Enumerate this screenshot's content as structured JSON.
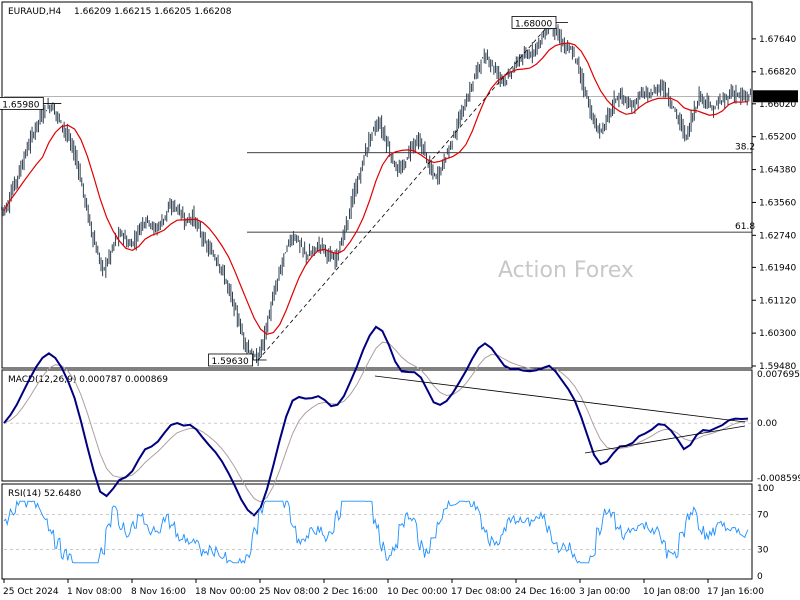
{
  "header": {
    "symbol": "EURAUD,H4",
    "ohlc": "1.66209 1.66215 1.66205 1.66208"
  },
  "watermark": "Action Forex",
  "chart_data": [
    {
      "type": "bar",
      "name": "price",
      "ylim": [
        1.5948,
        1.6846
      ],
      "y_ticks": [
        "1.67640",
        "1.66820",
        "1.66020",
        "1.65200",
        "1.64380",
        "1.63560",
        "1.62740",
        "1.61940",
        "1.61120",
        "1.60300",
        "1.59480"
      ],
      "current_price_label": "1.66208",
      "current_price": 1.66208,
      "swing_labels": [
        {
          "text": "1.65980",
          "value": 1.6598,
          "date_index": 8
        },
        {
          "text": "1.59630",
          "value": 1.5963,
          "date_index": 40
        },
        {
          "text": "1.68000",
          "value": 1.68,
          "date_index": 87
        }
      ],
      "fib_levels": [
        {
          "label": "38.2",
          "value": 1.648
        },
        {
          "label": "61.8",
          "value": 1.6282
        }
      ],
      "moving_average_color": "#e00000",
      "bar_color": "#2f3f4f",
      "close_series": [
        1.6342,
        1.6394,
        1.6433,
        1.6482,
        1.6523,
        1.6561,
        1.6589,
        1.6598,
        1.6569,
        1.6539,
        1.6502,
        1.6456,
        1.6376,
        1.63,
        1.6235,
        1.6186,
        1.622,
        1.6265,
        1.6279,
        1.6248,
        1.6263,
        1.6303,
        1.6315,
        1.6287,
        1.6303,
        1.6334,
        1.635,
        1.6332,
        1.6308,
        1.6322,
        1.6288,
        1.6251,
        1.623,
        1.6207,
        1.6168,
        1.6119,
        1.6068,
        1.6012,
        1.598,
        1.5963,
        1.601,
        1.6081,
        1.6148,
        1.621,
        1.6258,
        1.6273,
        1.624,
        1.6222,
        1.6238,
        1.6254,
        1.6229,
        1.621,
        1.6247,
        1.6302,
        1.6368,
        1.6422,
        1.6487,
        1.6532,
        1.6556,
        1.6519,
        1.6468,
        1.6432,
        1.6449,
        1.6496,
        1.651,
        1.6489,
        1.644,
        1.6416,
        1.6453,
        1.6493,
        1.6537,
        1.6581,
        1.6622,
        1.6673,
        1.671,
        1.6718,
        1.669,
        1.6668,
        1.6663,
        1.669,
        1.6715,
        1.672,
        1.6734,
        1.6756,
        1.6781,
        1.68,
        1.6768,
        1.6746,
        1.6733,
        1.6702,
        1.6645,
        1.6585,
        1.6535,
        1.654,
        1.6582,
        1.6617,
        1.6621,
        1.6593,
        1.6604,
        1.6631,
        1.662,
        1.6632,
        1.665,
        1.6624,
        1.659,
        1.6554,
        1.6518,
        1.6578,
        1.6621,
        1.6611,
        1.6585,
        1.6605,
        1.6612,
        1.6631,
        1.6624,
        1.6616,
        1.6621
      ]
    },
    {
      "type": "line",
      "name": "MACD",
      "label": "MACD(12,26,9) 0.000787 0.000869",
      "y_ticks": [
        "0.007695",
        "0.00",
        "-0.008599"
      ],
      "ylim": [
        -0.008599,
        0.007695
      ],
      "macd_color": "#000080",
      "signal_color": "#b0a0a0"
    },
    {
      "type": "line",
      "name": "RSI",
      "label": "RSI(14) 52.6480",
      "y_ticks": [
        "100",
        "70",
        "30",
        "0"
      ],
      "ylim": [
        0,
        100
      ],
      "levels": [
        70,
        30
      ],
      "line_color": "#1e90ff"
    }
  ],
  "x_axis": {
    "labels": [
      "25 Oct 2024",
      "1 Nov 08:00",
      "8 Nov 16:00",
      "18 Nov 00:00",
      "25 Nov 08:00",
      "2 Dec 16:00",
      "10 Dec 00:00",
      "17 Dec 08:00",
      "24 Dec 16:00",
      "3 Jan 00:00",
      "10 Jan 08:00",
      "17 Jan 16:00"
    ]
  }
}
